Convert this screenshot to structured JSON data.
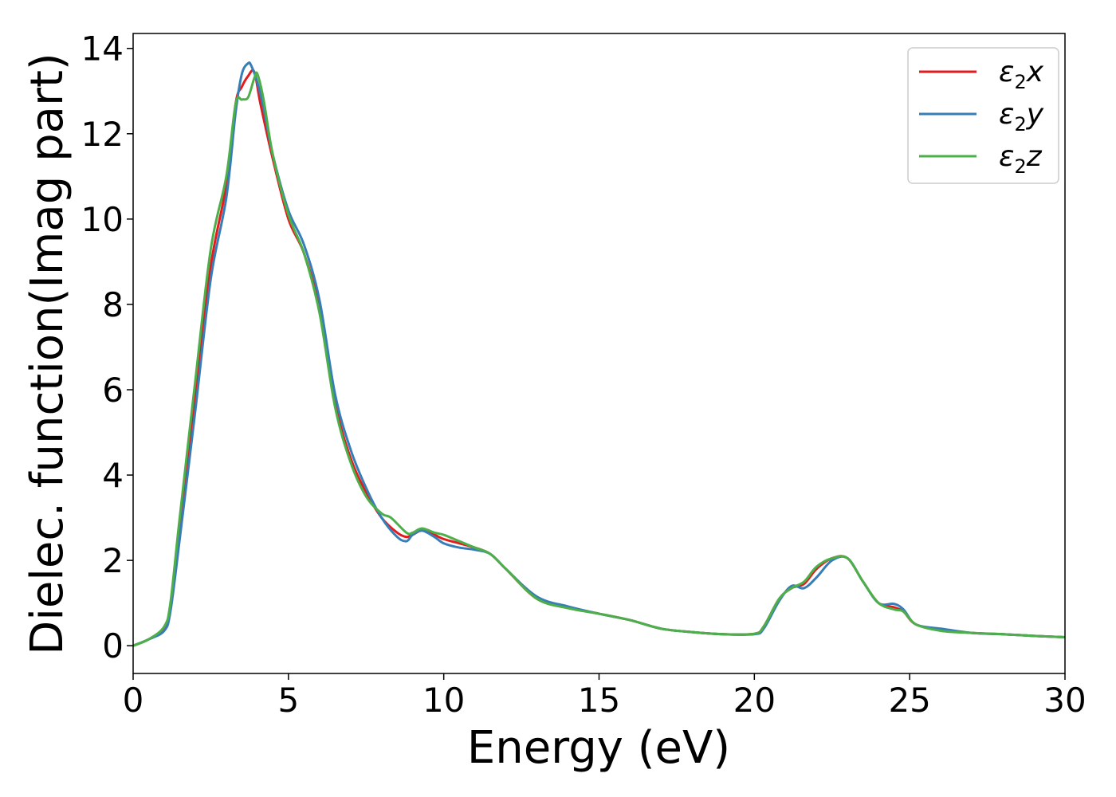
{
  "chart_data": {
    "type": "line",
    "title": "",
    "xlabel": "Energy (eV)",
    "ylabel": "Dielec. function(Imag part)",
    "xlim": [
      0,
      30
    ],
    "ylim": [
      -0.65,
      14.35
    ],
    "xticks": [
      "0",
      "5",
      "10",
      "15",
      "20",
      "25",
      "30"
    ],
    "yticks": [
      "0",
      "2",
      "4",
      "6",
      "8",
      "10",
      "12",
      "14"
    ],
    "grid": false,
    "legend_position": "top-right",
    "series": [
      {
        "name": "ε₂x",
        "legend_symbol": "ε",
        "legend_sub": "2",
        "legend_axis": "x",
        "color": "#e41a1c",
        "x": [
          0,
          0.5,
          1.0,
          1.2,
          1.5,
          2.0,
          2.5,
          3.0,
          3.3,
          3.5,
          3.7,
          3.9,
          4.1,
          4.5,
          5.0,
          5.5,
          6.0,
          6.5,
          7.0,
          7.5,
          8.0,
          8.5,
          8.8,
          9.0,
          9.3,
          9.7,
          10.0,
          10.5,
          11.0,
          11.5,
          12.0,
          13.0,
          14.0,
          15.0,
          16.0,
          17.0,
          18.0,
          19.0,
          20.0,
          20.3,
          20.8,
          21.2,
          21.6,
          22.0,
          22.5,
          23.0,
          23.5,
          24.0,
          24.5,
          24.8,
          25.2,
          26.0,
          27.0,
          28.0,
          29.0,
          30.0
        ],
        "y": [
          0,
          0.15,
          0.4,
          0.9,
          2.8,
          5.8,
          8.9,
          10.8,
          12.7,
          13.1,
          13.35,
          13.45,
          12.7,
          11.4,
          10.0,
          9.2,
          7.9,
          5.7,
          4.4,
          3.6,
          3.0,
          2.65,
          2.55,
          2.6,
          2.7,
          2.6,
          2.5,
          2.4,
          2.3,
          2.15,
          1.8,
          1.1,
          0.9,
          0.75,
          0.6,
          0.4,
          0.32,
          0.27,
          0.28,
          0.45,
          1.1,
          1.35,
          1.45,
          1.8,
          2.05,
          2.05,
          1.5,
          1.0,
          0.9,
          0.8,
          0.5,
          0.38,
          0.3,
          0.27,
          0.23,
          0.2
        ]
      },
      {
        "name": "ε₂y",
        "legend_symbol": "ε",
        "legend_sub": "2",
        "legend_axis": "y",
        "color": "#377eb8",
        "x": [
          0,
          0.5,
          1.0,
          1.2,
          1.5,
          2.0,
          2.5,
          3.0,
          3.3,
          3.5,
          3.7,
          3.8,
          4.0,
          4.2,
          4.5,
          5.0,
          5.5,
          6.0,
          6.5,
          7.0,
          7.5,
          8.0,
          8.5,
          8.8,
          9.0,
          9.3,
          9.7,
          10.0,
          10.5,
          11.0,
          11.5,
          12.0,
          13.0,
          14.0,
          15.0,
          16.0,
          17.0,
          18.0,
          19.0,
          20.0,
          20.3,
          20.8,
          21.2,
          21.6,
          22.0,
          22.5,
          23.0,
          23.5,
          24.0,
          24.5,
          24.8,
          25.2,
          26.0,
          27.0,
          28.0,
          29.0,
          30.0
        ],
        "y": [
          0,
          0.15,
          0.35,
          0.8,
          2.5,
          5.5,
          8.6,
          10.5,
          12.5,
          13.4,
          13.65,
          13.6,
          13.2,
          12.6,
          11.5,
          10.2,
          9.4,
          8.1,
          5.9,
          4.6,
          3.7,
          3.0,
          2.55,
          2.45,
          2.6,
          2.7,
          2.55,
          2.4,
          2.3,
          2.25,
          2.15,
          1.8,
          1.15,
          0.92,
          0.75,
          0.6,
          0.4,
          0.32,
          0.27,
          0.27,
          0.4,
          1.05,
          1.4,
          1.35,
          1.6,
          2.0,
          2.05,
          1.5,
          1.0,
          0.98,
          0.85,
          0.5,
          0.4,
          0.3,
          0.27,
          0.23,
          0.2
        ]
      },
      {
        "name": "ε₂z",
        "legend_symbol": "ε",
        "legend_sub": "2",
        "legend_axis": "z",
        "color": "#4daf4a",
        "x": [
          0,
          0.5,
          1.0,
          1.2,
          1.5,
          2.0,
          2.5,
          3.0,
          3.3,
          3.5,
          3.7,
          3.9,
          4.0,
          4.2,
          4.5,
          5.0,
          5.5,
          6.0,
          6.5,
          7.0,
          7.5,
          8.0,
          8.3,
          8.8,
          9.0,
          9.3,
          9.7,
          10.0,
          10.5,
          11.0,
          11.5,
          12.0,
          13.0,
          14.0,
          15.0,
          16.0,
          17.0,
          18.0,
          19.0,
          20.0,
          20.3,
          20.8,
          21.2,
          21.6,
          22.0,
          22.5,
          23.0,
          23.5,
          24.0,
          24.5,
          24.8,
          25.2,
          26.0,
          27.0,
          28.0,
          29.0,
          30.0
        ],
        "y": [
          0,
          0.15,
          0.45,
          1.0,
          3.0,
          6.2,
          9.3,
          11.0,
          12.7,
          12.8,
          12.85,
          13.3,
          13.4,
          12.8,
          11.5,
          10.1,
          9.2,
          7.8,
          5.6,
          4.3,
          3.5,
          3.1,
          3.0,
          2.65,
          2.65,
          2.75,
          2.65,
          2.6,
          2.45,
          2.3,
          2.15,
          1.8,
          1.1,
          0.88,
          0.75,
          0.6,
          0.4,
          0.32,
          0.27,
          0.28,
          0.45,
          1.1,
          1.35,
          1.5,
          1.85,
          2.05,
          2.05,
          1.5,
          1.0,
          0.85,
          0.8,
          0.5,
          0.35,
          0.3,
          0.27,
          0.23,
          0.2
        ]
      }
    ]
  }
}
